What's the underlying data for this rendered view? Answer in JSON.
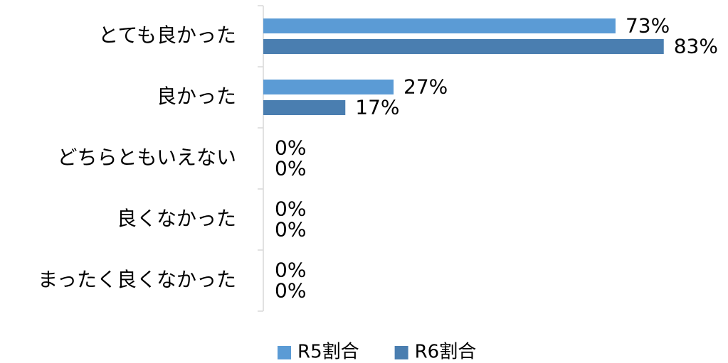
{
  "chart_data": {
    "type": "bar",
    "orientation": "horizontal",
    "categories": [
      "とても良かった",
      "良かった",
      "どちらともいえない",
      "良くなかった",
      "まったく良くなかった"
    ],
    "series": [
      {
        "name": "R5割合",
        "color": "#5b9bd5",
        "values": [
          73,
          27,
          0,
          0,
          0
        ],
        "value_labels": [
          "73%",
          "27%",
          "0%",
          "0%",
          "0%"
        ]
      },
      {
        "name": "R6割合",
        "color": "#4a7eb0",
        "values": [
          83,
          17,
          0,
          0,
          0
        ],
        "value_labels": [
          "83%",
          "17%",
          "0%",
          "0%",
          "0%"
        ]
      }
    ],
    "legend": "bottom"
  }
}
